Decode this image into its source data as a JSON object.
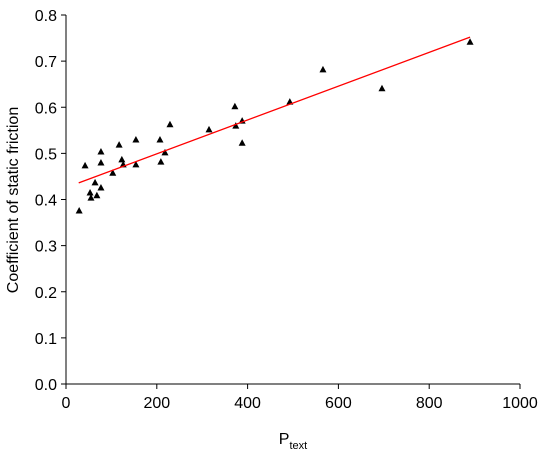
{
  "chart_data": {
    "type": "scatter",
    "x_label": "P",
    "x_label_sub": "text",
    "y_label": "Coefficient of static friction",
    "xlim": [
      0,
      1000
    ],
    "xticks": [
      0,
      200,
      400,
      600,
      800,
      1000
    ],
    "ylim": [
      0,
      0.8
    ],
    "yticks": [
      {
        "value": 0,
        "label": "0.0"
      },
      0.1,
      0.2,
      0.3,
      0.4,
      0.5,
      0.6,
      0.7,
      0.8
    ],
    "points": {
      "color": "#000000",
      "x": [
        29,
        42,
        53,
        55,
        64,
        68,
        77,
        77,
        77,
        103,
        117,
        123,
        126,
        154,
        154,
        207,
        209,
        218,
        229,
        315,
        372,
        374,
        388,
        388,
        493,
        566,
        696,
        890
      ],
      "y": [
        0.375,
        0.473,
        0.414,
        0.403,
        0.436,
        0.408,
        0.503,
        0.479,
        0.425,
        0.457,
        0.518,
        0.486,
        0.475,
        0.529,
        0.475,
        0.529,
        0.481,
        0.501,
        0.562,
        0.551,
        0.601,
        0.559,
        0.57,
        0.522,
        0.611,
        0.681,
        0.64,
        0.741
      ]
    },
    "fit": {
      "color": "#ff0000",
      "x": [
        28,
        890
      ],
      "y": [
        0.436,
        0.752
      ]
    }
  }
}
